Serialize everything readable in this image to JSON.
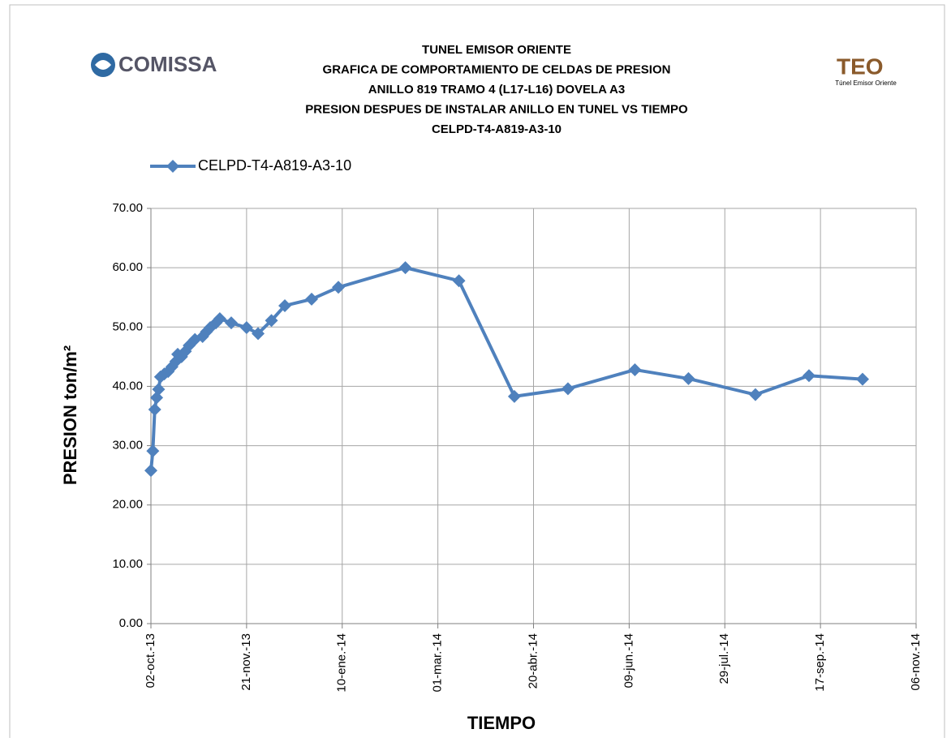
{
  "chart_data": {
    "type": "line",
    "title": [
      "TUNEL EMISOR ORIENTE",
      "GRAFICA DE COMPORTAMIENTO DE CELDAS DE PRESION",
      "ANILLO 819 TRAMO 4 (L17-L16) DOVELA A3",
      "PRESION DESPUES DE INSTALAR ANILLO EN TUNEL VS TIEMPO",
      "CELPD-T4-A819-A3-10"
    ],
    "logos": {
      "left": "COMISSA",
      "right": "TEO",
      "right_caption": "Túnel Emisor Oriente"
    },
    "x_label": "TIEMPO",
    "y_label": "PRESION ton/m²",
    "x": [
      "2013-10-02",
      "2013-10-03",
      "2013-10-04",
      "2013-10-05",
      "2013-10-06",
      "2013-10-07",
      "2013-10-09",
      "2013-10-11",
      "2013-10-13",
      "2013-10-15",
      "2013-10-16",
      "2013-10-18",
      "2013-10-20",
      "2013-10-22",
      "2013-10-25",
      "2013-10-29",
      "2013-10-31",
      "2013-11-02",
      "2013-11-05",
      "2013-11-07",
      "2013-11-13",
      "2013-11-21",
      "2013-11-27",
      "2013-12-04",
      "2013-12-11",
      "2013-12-25",
      "2014-01-08",
      "2014-02-12",
      "2014-03-12",
      "2014-04-10",
      "2014-05-08",
      "2014-06-12",
      "2014-07-10",
      "2014-08-14",
      "2014-09-11",
      "2014-10-09"
    ],
    "series": [
      {
        "name": "CELPD-T4-A819-A3-10",
        "color": "#4f81bd",
        "values": [
          25.8,
          29.1,
          36.1,
          38.1,
          39.5,
          41.6,
          42.1,
          42.5,
          43.3,
          44.2,
          45.4,
          45.0,
          45.9,
          46.9,
          47.9,
          48.4,
          49.2,
          49.9,
          50.7,
          51.4,
          50.7,
          49.9,
          48.9,
          51.1,
          53.6,
          54.7,
          56.7,
          60.0,
          57.8,
          38.3,
          39.6,
          42.8,
          41.3,
          38.6,
          41.8,
          41.2
        ]
      }
    ],
    "xlim": [
      "2013-10-02",
      "2014-11-06"
    ],
    "xticks": [
      {
        "value": "2013-10-02",
        "label": "02-oct.-13"
      },
      {
        "value": "2013-11-21",
        "label": "21-nov.-13"
      },
      {
        "value": "2014-01-10",
        "label": "10-ene.-14"
      },
      {
        "value": "2014-03-01",
        "label": "01-mar.-14"
      },
      {
        "value": "2014-04-20",
        "label": "20-abr.-14"
      },
      {
        "value": "2014-06-09",
        "label": "09-jun.-14"
      },
      {
        "value": "2014-07-29",
        "label": "29-jul.-14"
      },
      {
        "value": "2014-09-17",
        "label": "17-sep.-14"
      },
      {
        "value": "2014-11-06",
        "label": "06-nov.-14"
      }
    ],
    "ylim": [
      0,
      70
    ],
    "yticks": [
      {
        "value": 0,
        "label": "0.00"
      },
      {
        "value": 10,
        "label": "10.00"
      },
      {
        "value": 20,
        "label": "20.00"
      },
      {
        "value": 30,
        "label": "30.00"
      },
      {
        "value": 40,
        "label": "40.00"
      },
      {
        "value": 50,
        "label": "50.00"
      },
      {
        "value": 60,
        "label": "60.00"
      },
      {
        "value": 70,
        "label": "70.00"
      }
    ],
    "grid": true,
    "legend": "top-left"
  }
}
